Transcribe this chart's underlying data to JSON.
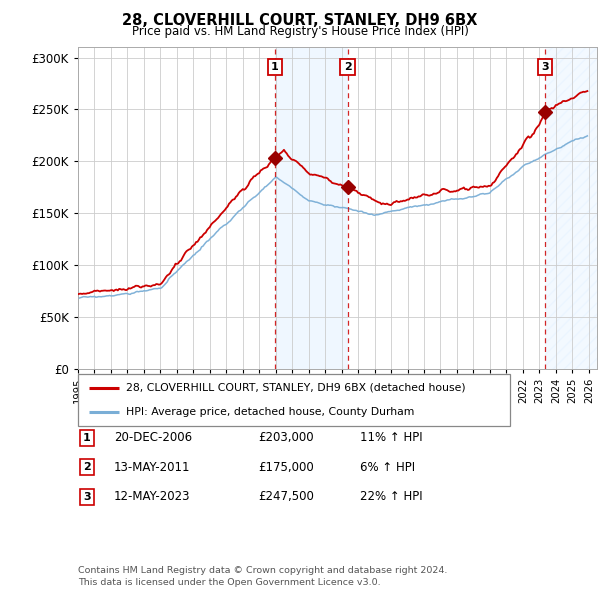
{
  "title1": "28, CLOVERHILL COURT, STANLEY, DH9 6BX",
  "title2": "Price paid vs. HM Land Registry's House Price Index (HPI)",
  "ylim": [
    0,
    310000
  ],
  "yticks": [
    0,
    50000,
    100000,
    150000,
    200000,
    250000,
    300000
  ],
  "ytick_labels": [
    "£0",
    "£50K",
    "£100K",
    "£150K",
    "£200K",
    "£250K",
    "£300K"
  ],
  "x_start_year": 1995,
  "x_end_year": 2026,
  "legend1": "28, CLOVERHILL COURT, STANLEY, DH9 6BX (detached house)",
  "legend2": "HPI: Average price, detached house, County Durham",
  "sale1_date": 2006.96,
  "sale1_price": 203000,
  "sale1_label": "1",
  "sale1_display": "20-DEC-2006",
  "sale1_amount": "£203,000",
  "sale1_hpi": "11% ↑ HPI",
  "sale2_date": 2011.36,
  "sale2_price": 175000,
  "sale2_label": "2",
  "sale2_display": "13-MAY-2011",
  "sale2_amount": "£175,000",
  "sale2_hpi": "6% ↑ HPI",
  "sale3_date": 2023.36,
  "sale3_price": 247500,
  "sale3_label": "3",
  "sale3_display": "12-MAY-2023",
  "sale3_amount": "£247,500",
  "sale3_hpi": "22% ↑ HPI",
  "red_line_color": "#cc0000",
  "blue_line_color": "#7aaed6",
  "bg_shade_color": "#ddeeff",
  "sale_dot_color": "#990000",
  "grid_color": "#cccccc",
  "footnote": "Contains HM Land Registry data © Crown copyright and database right 2024.\nThis data is licensed under the Open Government Licence v3.0."
}
